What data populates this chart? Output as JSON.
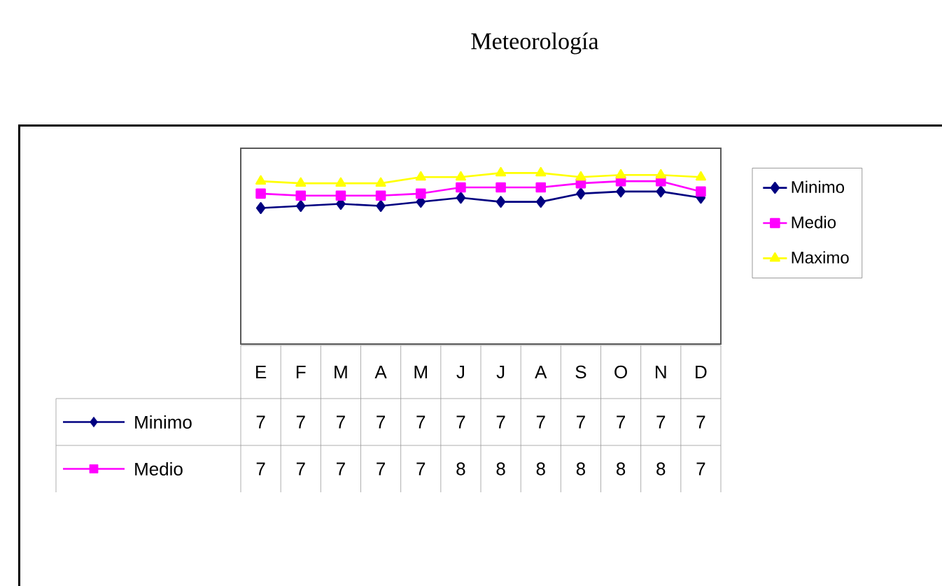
{
  "chart_data": {
    "type": "line",
    "title": "Meteorología",
    "categories": [
      "E",
      "F",
      "M",
      "A",
      "M",
      "J",
      "J",
      "A",
      "S",
      "O",
      "N",
      "D"
    ],
    "ylim": [
      0,
      9.5
    ],
    "legend": "right",
    "series": [
      {
        "name": "Minimo",
        "color": "#000080",
        "marker": "diamond",
        "values": [
          6.6,
          6.7,
          6.8,
          6.7,
          6.9,
          7.1,
          6.9,
          6.9,
          7.3,
          7.4,
          7.4,
          7.1
        ],
        "value_labels": [
          "7",
          "7",
          "7",
          "7",
          "7",
          "7",
          "7",
          "7",
          "7",
          "7",
          "7",
          "7"
        ]
      },
      {
        "name": "Medio",
        "color": "#ff00ff",
        "marker": "square",
        "values": [
          7.3,
          7.2,
          7.2,
          7.2,
          7.3,
          7.6,
          7.6,
          7.6,
          7.8,
          7.9,
          7.9,
          7.4
        ],
        "value_labels": [
          "7",
          "7",
          "7",
          "7",
          "7",
          "8",
          "8",
          "8",
          "8",
          "8",
          "8",
          "7"
        ]
      },
      {
        "name": "Maximo",
        "color": "#ffff00",
        "marker": "triangle",
        "values": [
          7.9,
          7.8,
          7.8,
          7.8,
          8.1,
          8.1,
          8.3,
          8.3,
          8.1,
          8.2,
          8.2,
          8.1
        ]
      }
    ]
  }
}
